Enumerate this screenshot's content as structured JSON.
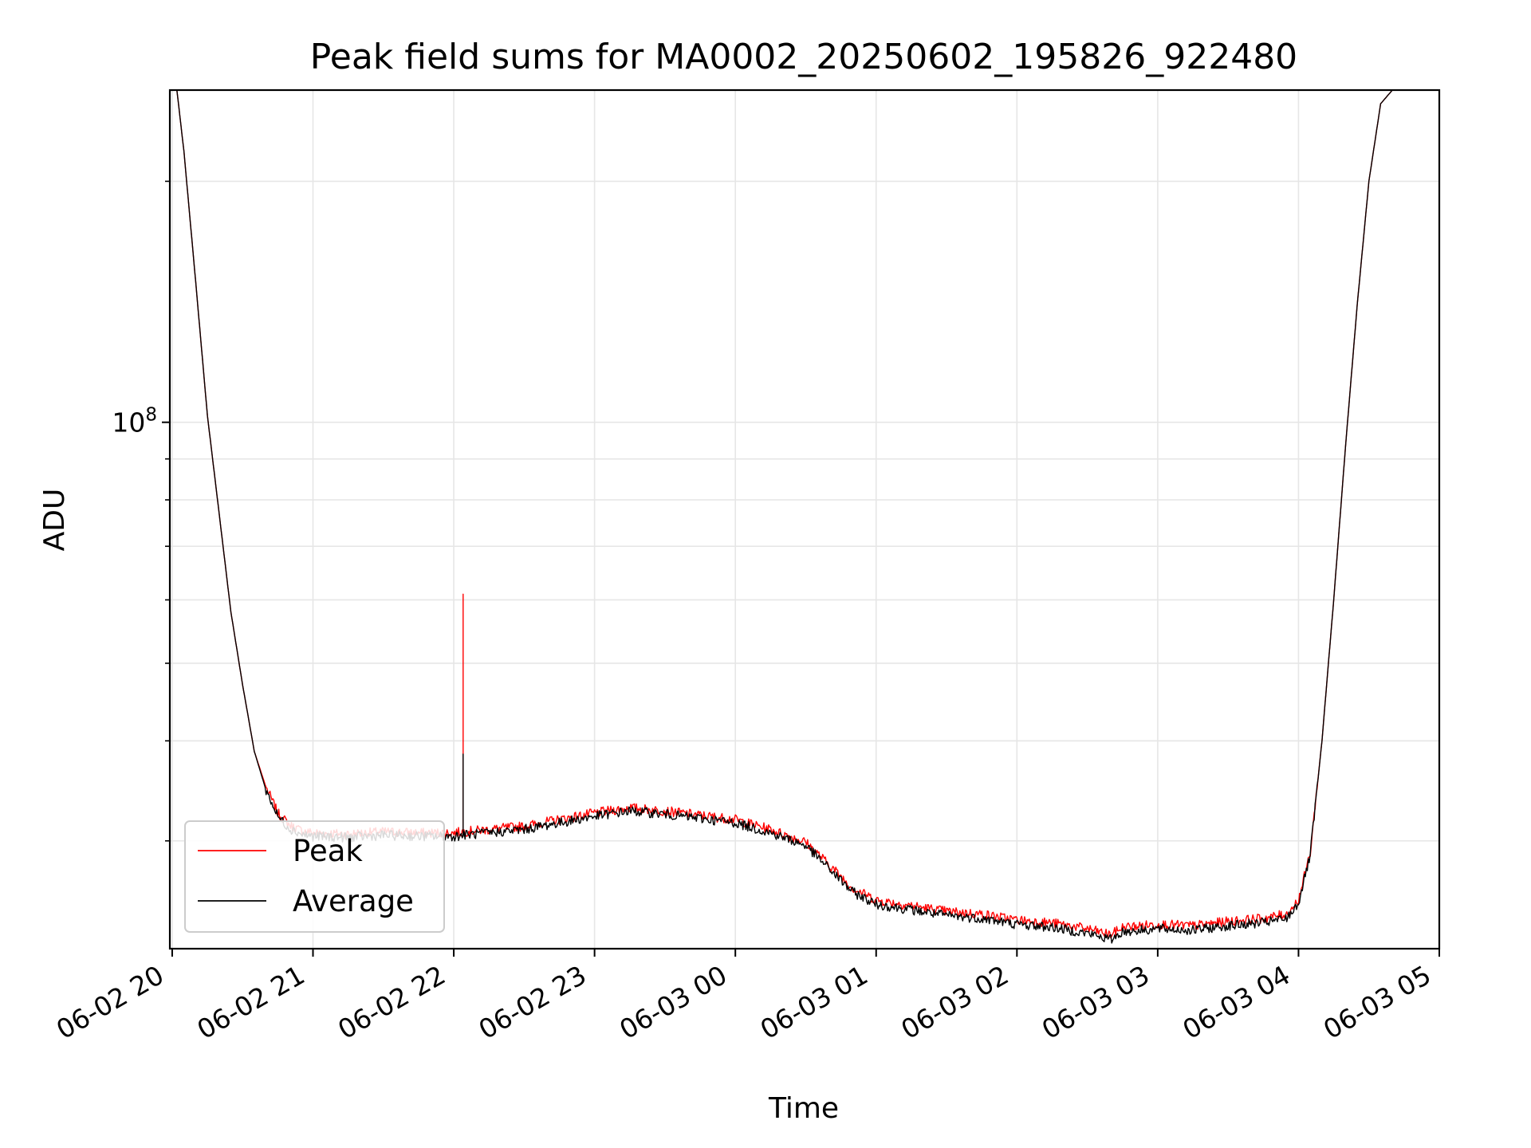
{
  "chart_data": {
    "type": "line",
    "title": "Peak field sums for MA0002_20250602_195826_922480",
    "xlabel": "Time",
    "ylabel": "ADU",
    "yscale": "log",
    "grid": true,
    "legend_position": "lower-left",
    "x_ticks": [
      "06-02 20",
      "06-02 21",
      "06-02 22",
      "06-02 23",
      "06-03 00",
      "06-03 01",
      "06-03 02",
      "06-03 03",
      "06-03 04",
      "06-03 05"
    ],
    "y_tick_label": {
      "base": "10",
      "exponent": "8"
    },
    "xlim": [
      "2025-06-02 19:59",
      "2025-06-03 05:00"
    ],
    "ylim": [
      22000000,
      260000000
    ],
    "series": [
      {
        "name": "Peak",
        "color": "#ff0000",
        "points": [
          [
            "2025-06-02 20:00",
            260000000
          ],
          [
            "2025-06-02 20:02",
            260000000
          ],
          [
            "2025-06-02 20:05",
            218000000
          ],
          [
            "2025-06-02 20:10",
            150000000
          ],
          [
            "2025-06-02 20:15",
            102000000
          ],
          [
            "2025-06-02 20:20",
            77000000
          ],
          [
            "2025-06-02 20:25",
            58000000
          ],
          [
            "2025-06-02 20:30",
            47000000
          ],
          [
            "2025-06-02 20:35",
            38800000
          ],
          [
            "2025-06-02 20:40",
            35000000
          ],
          [
            "2025-06-02 20:45",
            32500000
          ],
          [
            "2025-06-02 20:50",
            31400000
          ],
          [
            "2025-06-02 20:55",
            30900000
          ],
          [
            "2025-06-02 21:00",
            30700000
          ],
          [
            "2025-06-02 21:15",
            30600000
          ],
          [
            "2025-06-02 21:30",
            30800000
          ],
          [
            "2025-06-02 21:45",
            30700000
          ],
          [
            "2025-06-02 22:00",
            30700000
          ],
          [
            "2025-06-02 22:04",
            30800000
          ],
          [
            "2025-06-02 22:04",
            61000000
          ],
          [
            "2025-06-02 22:04",
            30800000
          ],
          [
            "2025-06-02 22:15",
            31000000
          ],
          [
            "2025-06-02 22:30",
            31300000
          ],
          [
            "2025-06-02 22:45",
            31900000
          ],
          [
            "2025-06-02 23:00",
            32500000
          ],
          [
            "2025-06-02 23:15",
            33000000
          ],
          [
            "2025-06-02 23:30",
            32700000
          ],
          [
            "2025-06-02 23:45",
            32300000
          ],
          [
            "2025-06-03 00:00",
            31900000
          ],
          [
            "2025-06-03 00:15",
            31000000
          ],
          [
            "2025-06-03 00:30",
            29900000
          ],
          [
            "2025-06-03 00:40",
            28000000
          ],
          [
            "2025-06-03 00:50",
            26200000
          ],
          [
            "2025-06-03 01:00",
            25300000
          ],
          [
            "2025-06-03 01:15",
            24900000
          ],
          [
            "2025-06-03 01:30",
            24500000
          ],
          [
            "2025-06-03 01:45",
            24300000
          ],
          [
            "2025-06-03 02:00",
            23900000
          ],
          [
            "2025-06-03 02:15",
            23700000
          ],
          [
            "2025-06-03 02:30",
            23300000
          ],
          [
            "2025-06-03 02:40",
            22900000
          ],
          [
            "2025-06-03 02:45",
            23400000
          ],
          [
            "2025-06-03 03:00",
            23600000
          ],
          [
            "2025-06-03 03:15",
            23500000
          ],
          [
            "2025-06-03 03:30",
            23800000
          ],
          [
            "2025-06-03 03:45",
            24000000
          ],
          [
            "2025-06-03 03:55",
            24300000
          ],
          [
            "2025-06-03 04:00",
            25300000
          ],
          [
            "2025-06-03 04:05",
            29000000
          ],
          [
            "2025-06-03 04:10",
            40000000
          ],
          [
            "2025-06-03 04:15",
            60000000
          ],
          [
            "2025-06-03 04:20",
            93000000
          ],
          [
            "2025-06-03 04:25",
            140000000
          ],
          [
            "2025-06-03 04:30",
            200000000
          ],
          [
            "2025-06-03 04:35",
            250000000
          ],
          [
            "2025-06-03 04:40",
            260000000
          ],
          [
            "2025-06-03 05:00",
            260000000
          ]
        ]
      },
      {
        "name": "Average",
        "color": "#000000",
        "points": [
          [
            "2025-06-02 20:00",
            260000000
          ],
          [
            "2025-06-02 20:02",
            260000000
          ],
          [
            "2025-06-02 20:05",
            218000000
          ],
          [
            "2025-06-02 20:10",
            150000000
          ],
          [
            "2025-06-02 20:15",
            102000000
          ],
          [
            "2025-06-02 20:20",
            77000000
          ],
          [
            "2025-06-02 20:25",
            58000000
          ],
          [
            "2025-06-02 20:30",
            47000000
          ],
          [
            "2025-06-02 20:35",
            38800000
          ],
          [
            "2025-06-02 20:40",
            34700000
          ],
          [
            "2025-06-02 20:45",
            32200000
          ],
          [
            "2025-06-02 20:50",
            31100000
          ],
          [
            "2025-06-02 20:55",
            30600000
          ],
          [
            "2025-06-02 21:00",
            30400000
          ],
          [
            "2025-06-02 21:15",
            30300000
          ],
          [
            "2025-06-02 21:30",
            30500000
          ],
          [
            "2025-06-02 21:45",
            30400000
          ],
          [
            "2025-06-02 22:00",
            30400000
          ],
          [
            "2025-06-02 22:04",
            30500000
          ],
          [
            "2025-06-02 22:04",
            38500000
          ],
          [
            "2025-06-02 22:04",
            30500000
          ],
          [
            "2025-06-02 22:15",
            30700000
          ],
          [
            "2025-06-02 22:30",
            31000000
          ],
          [
            "2025-06-02 22:45",
            31600000
          ],
          [
            "2025-06-02 23:00",
            32200000
          ],
          [
            "2025-06-02 23:15",
            32700000
          ],
          [
            "2025-06-02 23:30",
            32400000
          ],
          [
            "2025-06-02 23:45",
            32000000
          ],
          [
            "2025-06-03 00:00",
            31600000
          ],
          [
            "2025-06-03 00:15",
            30700000
          ],
          [
            "2025-06-03 00:30",
            29600000
          ],
          [
            "2025-06-03 00:40",
            27700000
          ],
          [
            "2025-06-03 00:50",
            25900000
          ],
          [
            "2025-06-03 01:00",
            25000000
          ],
          [
            "2025-06-03 01:15",
            24600000
          ],
          [
            "2025-06-03 01:30",
            24200000
          ],
          [
            "2025-06-03 01:45",
            24000000
          ],
          [
            "2025-06-03 02:00",
            23600000
          ],
          [
            "2025-06-03 02:15",
            23400000
          ],
          [
            "2025-06-03 02:30",
            23000000
          ],
          [
            "2025-06-03 02:40",
            22600000
          ],
          [
            "2025-06-03 02:45",
            23100000
          ],
          [
            "2025-06-03 03:00",
            23300000
          ],
          [
            "2025-06-03 03:15",
            23200000
          ],
          [
            "2025-06-03 03:30",
            23500000
          ],
          [
            "2025-06-03 03:45",
            23700000
          ],
          [
            "2025-06-03 03:55",
            24000000
          ],
          [
            "2025-06-03 04:00",
            25100000
          ],
          [
            "2025-06-03 04:05",
            28800000
          ],
          [
            "2025-06-03 04:10",
            40000000
          ],
          [
            "2025-06-03 04:15",
            60000000
          ],
          [
            "2025-06-03 04:20",
            93000000
          ],
          [
            "2025-06-03 04:25",
            140000000
          ],
          [
            "2025-06-03 04:30",
            200000000
          ],
          [
            "2025-06-03 04:35",
            250000000
          ],
          [
            "2025-06-03 04:40",
            260000000
          ],
          [
            "2025-06-03 05:00",
            260000000
          ]
        ]
      }
    ]
  }
}
